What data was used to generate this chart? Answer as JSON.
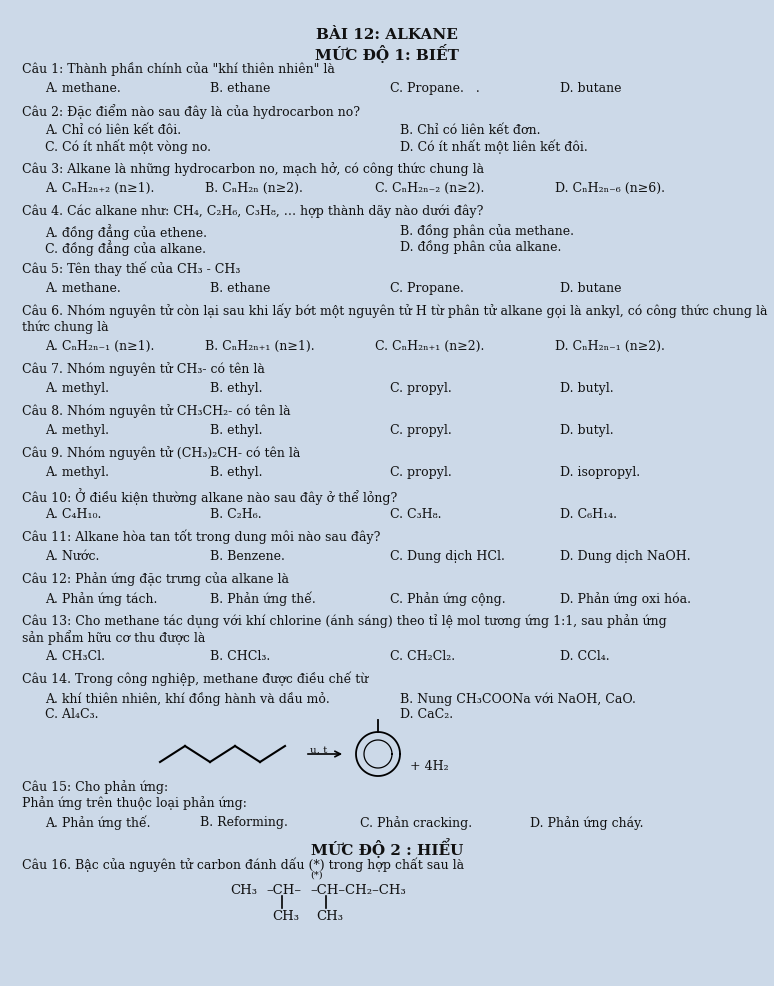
{
  "title1": "BÀI 12: ALKANE",
  "title2": "MỨC ĐỘ 1: BIẾT",
  "bg_color": "#ccd9e8",
  "text_color": "#1a1a1a",
  "q1": "Câu 1: Thành phần chính của \"khí thiên nhiên\" là",
  "q1_opts": [
    "A. methane.",
    "B. ethane",
    "C. Propane.   .",
    "D. butane"
  ],
  "q2": "Câu 2: Đặc điểm nào sau đây là của hydrocarbon no?",
  "q2_opts": [
    [
      "A. Chỉ có liên kết đôi.",
      "B. Chỉ có liên kết đơn."
    ],
    [
      "C. Có ít nhất một vòng no.",
      "D. Có ít nhất một liên kết đôi."
    ]
  ],
  "q3": "Câu 3: Alkane là những hydrocarbon no, mạch hở, có công thức chung là",
  "q3_opts": [
    "A. CₙH₂ₙ₊₂ (n≥1).",
    "B. CₙH₂ₙ (n≥2).",
    "C. CₙH₂ₙ₋₂ (n≥2).",
    "D. CₙH₂ₙ₋₆ (n≥6)."
  ],
  "q4": "Câu 4. Các alkane như: CH₄, C₂H₆, C₃H₈, … hợp thành dãy nào dưới đây?",
  "q4_opts": [
    [
      "A. đồng đẳng của ethene.",
      "B. đồng phân của methane."
    ],
    [
      "C. đồng đẳng của alkane.",
      "D. đồng phân của alkane."
    ]
  ],
  "q5": "Câu 5: Tên thay thế của CH₃ - CH₃",
  "q5_opts": [
    "A. methane.",
    "B. ethane",
    "C. Propane.",
    "D. butane"
  ],
  "q6": "Câu 6. Nhóm nguyên tử còn lại sau khi lấy bớt một nguyên tử H từ phân tử alkane gọi là ankyl, có công thức chung là",
  "q6_opts": [
    "A. CₙH₂ₙ₋₁ (n≥1).",
    "B. CₙH₂ₙ₊₁ (n≥1).",
    "C. CₙH₂ₙ₊₁ (n≥2).",
    "D. CₙH₂ₙ₋₁ (n≥2)."
  ],
  "q7": "Câu 7. Nhóm nguyên tử CH₃- có tên là",
  "q7_opts": [
    "A. methyl.",
    "B. ethyl.",
    "C. propyl.",
    "D. butyl."
  ],
  "q8": "Câu 8. Nhóm nguyên tử CH₃CH₂- có tên là",
  "q8_opts": [
    "A. methyl.",
    "B. ethyl.",
    "C. propyl.",
    "D. butyl."
  ],
  "q9": "Câu 9. Nhóm nguyên tử (CH₃)₂CH- có tên là",
  "q9_opts": [
    "A. methyl.",
    "B. ethyl.",
    "C. propyl.",
    "D. isopropyl."
  ],
  "q10": "Câu 10: Ở điều kiện thường alkane nào sau đây ở thể lỏng?",
  "q10_opts": [
    "A. C₄H₁₀.",
    "B. C₂H₆.",
    "C. C₃H₈.",
    "D. C₆H₁₄."
  ],
  "q11": "Câu 11: Alkane hòa tan tốt trong dung môi nào sau đây?",
  "q11_opts": [
    "A. Nước.",
    "B. Benzene.",
    "C. Dung dịch HCl.",
    "D. Dung dịch NaOH."
  ],
  "q12": "Câu 12: Phản ứng đặc trưng của alkane là",
  "q12_opts": [
    "A. Phản ứng tách.",
    "B. Phản ứng thế.",
    "C. Phản ứng cộng.",
    "D. Phản ứng oxi hóa."
  ],
  "q13a": "Câu 13: Cho methane tác dụng với khí chlorine (ánh sáng) theo tỉ lệ mol tương ứng 1:1, sau phản ứng",
  "q13b": "sản phẩm hữu cơ thu được là",
  "q13_opts": [
    "A. CH₃Cl.",
    "B. CHCl₃.",
    "C. CH₂Cl₂.",
    "D. CCl₄."
  ],
  "q14": "Câu 14. Trong công nghiệp, methane được điều chế từ",
  "q14_opts": [
    [
      "A. khí thiên nhiên, khí đồng hành và dầu mỏ.",
      "B. Nung CH₃COONa với NaOH, CaO."
    ],
    [
      "C. Al₄C₃.",
      "D. CaC₂."
    ]
  ],
  "q15a": "Câu 15: Cho phản ứng:",
  "q15b": "Phản ứng trên thuộc loại phản ứng:",
  "q15_opts": [
    "A. Phản ứng thế.",
    "B. Reforming.",
    "C. Phản cracking.",
    "D. Phản ứng cháy."
  ],
  "title3": "MỨC ĐỘ 2 : HIỂU",
  "q16": "Câu 16. Bậc của nguyên tử carbon đánh dấu (*) trong hợp chất sau là"
}
